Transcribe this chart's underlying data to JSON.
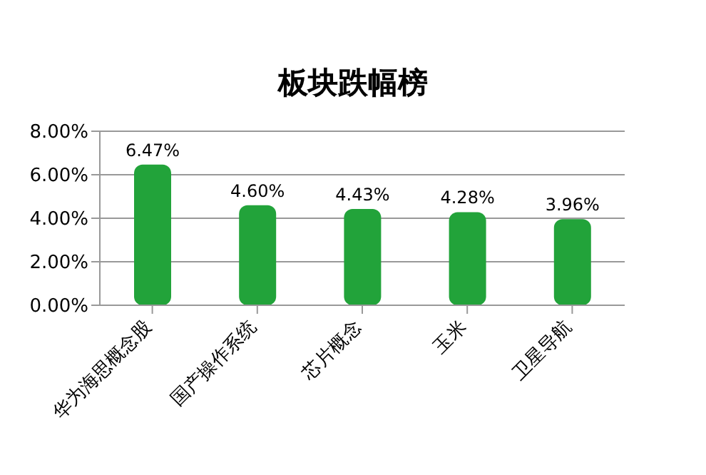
{
  "chart_data": {
    "type": "bar",
    "title": "板块跌幅榜",
    "categories": [
      "华为海思概念股",
      "国产操作系统",
      "芯片概念",
      "玉米",
      "卫星导航"
    ],
    "values": [
      6.47,
      4.6,
      4.43,
      4.28,
      3.96
    ],
    "value_labels": [
      "6.47%",
      "4.60%",
      "4.43%",
      "4.28%",
      "3.96%"
    ],
    "color": "#22a33a",
    "ylim": [
      0,
      8
    ],
    "yticks": [
      {
        "value": 0,
        "label": "0.00%"
      },
      {
        "value": 2,
        "label": "2.00%"
      },
      {
        "value": 4,
        "label": "4.00%"
      },
      {
        "value": 6,
        "label": "6.00%"
      },
      {
        "value": 8,
        "label": "8.00%"
      }
    ],
    "grid": "y"
  }
}
